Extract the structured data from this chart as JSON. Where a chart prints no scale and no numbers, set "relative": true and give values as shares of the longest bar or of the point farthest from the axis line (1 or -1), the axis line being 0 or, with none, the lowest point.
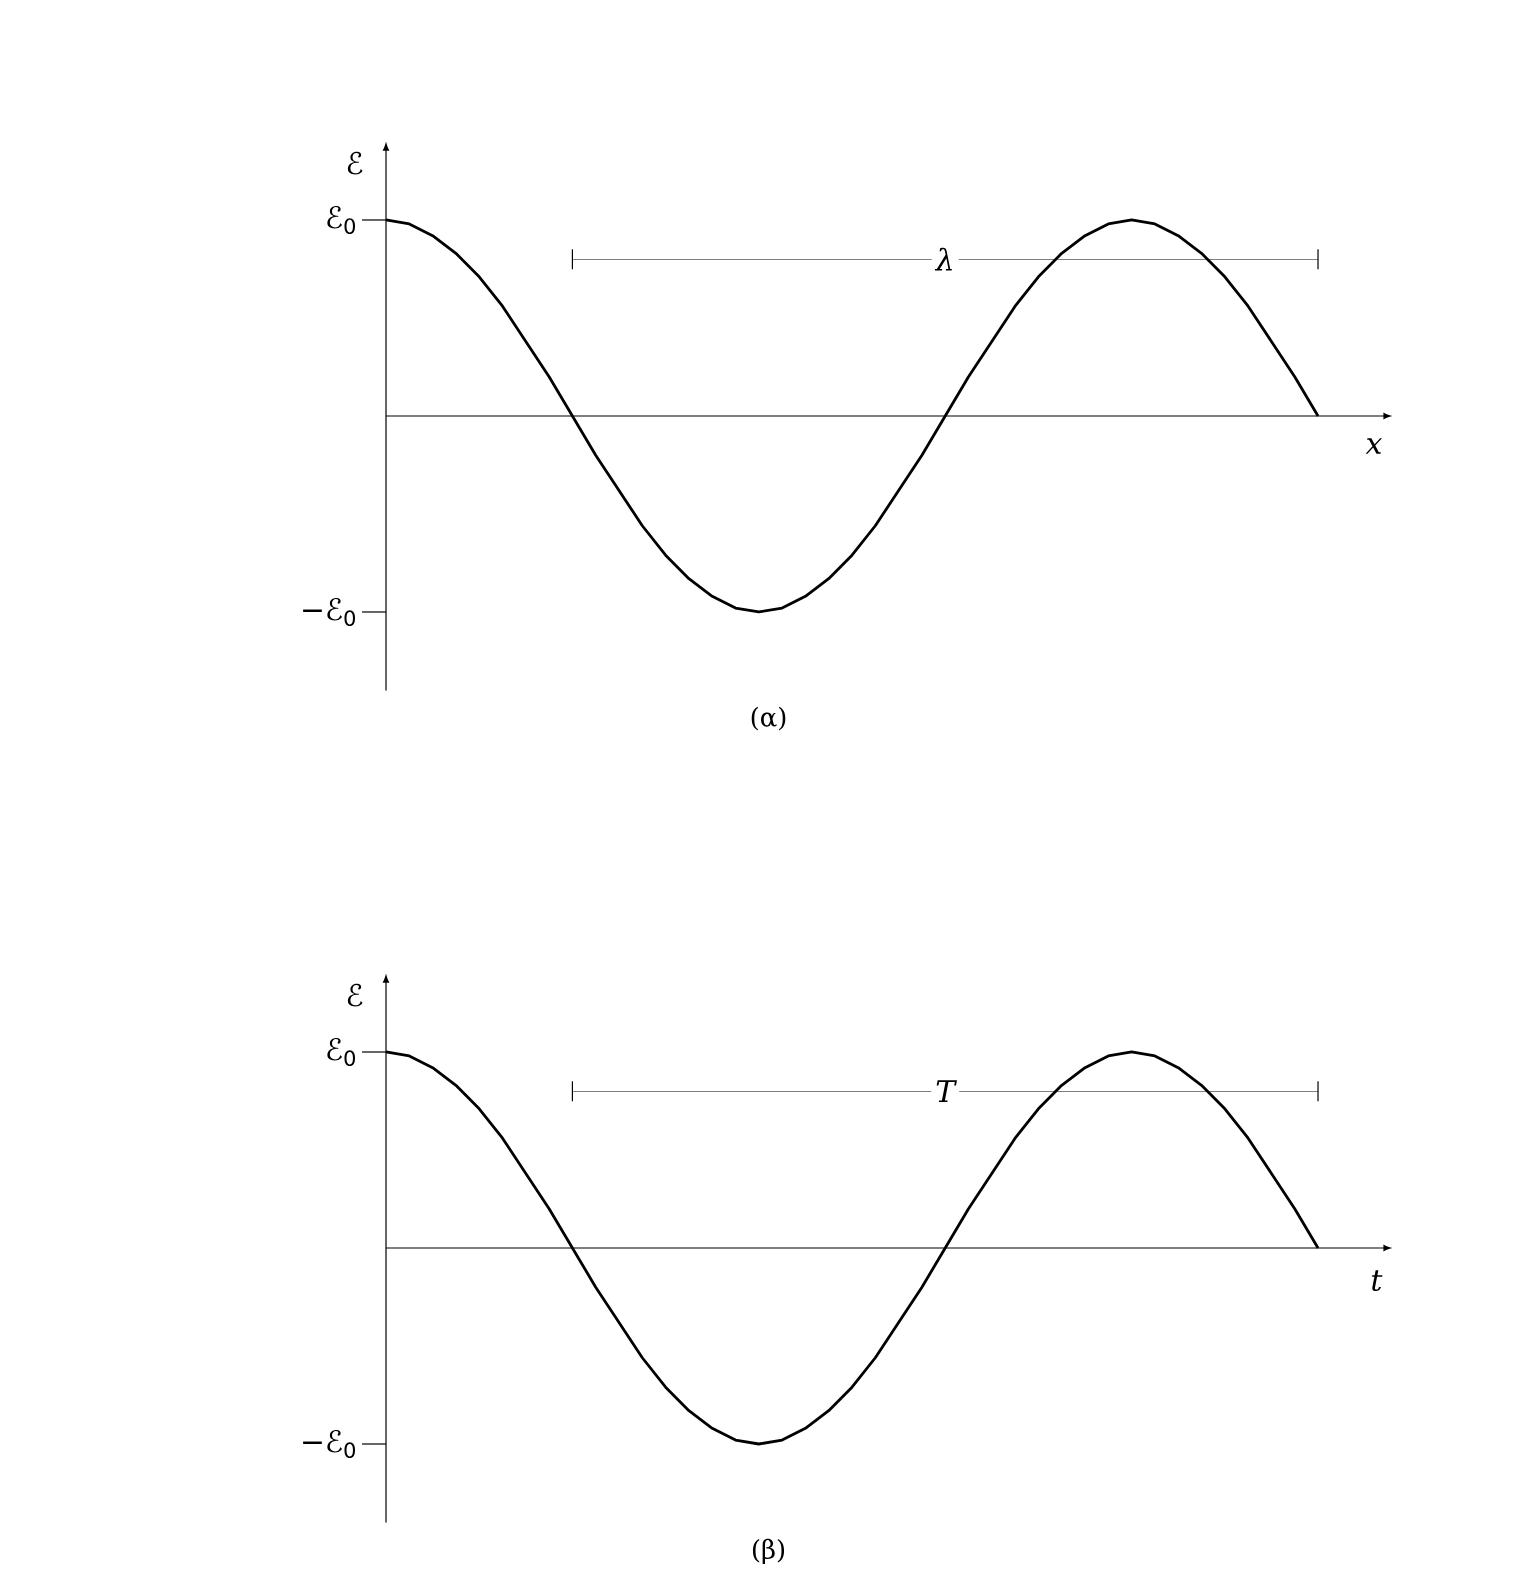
{
  "chart_data": [
    {
      "type": "line",
      "title": "(α)",
      "xlabel": "x",
      "ylabel": "ℰ",
      "relative": true,
      "categories": [
        null,
        null,
        null,
        null,
        null,
        null,
        null,
        null,
        null,
        null,
        null,
        null,
        null,
        null,
        null,
        null,
        null,
        null,
        null,
        null,
        null,
        null,
        null,
        null,
        null,
        null,
        null,
        null,
        null,
        null,
        null,
        null,
        null,
        null,
        null,
        null,
        null,
        null,
        null,
        null,
        null
      ],
      "series": [
        {
          "color": "#000000",
          "values": [
            1,
            0.98,
            0.92,
            0.83,
            0.71,
            0.56,
            0.38,
            0.2,
            0,
            -0.2,
            -0.38,
            -0.56,
            -0.71,
            -0.83,
            -0.92,
            -0.98,
            -1,
            -0.98,
            -0.92,
            -0.83,
            -0.71,
            -0.56,
            -0.38,
            -0.2,
            0,
            0.2,
            0.38,
            0.56,
            0.71,
            0.83,
            0.92,
            0.98,
            1,
            0.98,
            0.92,
            0.83,
            0.71,
            0.56,
            0.38,
            0.2,
            0
          ]
        }
      ],
      "annotations": [
        "ℰ$_{0}$",
        "−ℰ$_{0}$",
        "λ"
      ]
    },
    {
      "type": "line",
      "title": "(β)",
      "xlabel": "t",
      "ylabel": "ℰ",
      "relative": true,
      "categories": [
        null,
        null,
        null,
        null,
        null,
        null,
        null,
        null,
        null,
        null,
        null,
        null,
        null,
        null,
        null,
        null,
        null,
        null,
        null,
        null,
        null,
        null,
        null,
        null,
        null,
        null,
        null,
        null,
        null,
        null,
        null,
        null,
        null,
        null,
        null,
        null,
        null,
        null,
        null,
        null,
        null
      ],
      "series": [
        {
          "color": "#000000",
          "values": [
            1,
            0.98,
            0.92,
            0.83,
            0.71,
            0.56,
            0.38,
            0.2,
            0,
            -0.2,
            -0.38,
            -0.56,
            -0.71,
            -0.83,
            -0.92,
            -0.98,
            -1,
            -0.98,
            -0.92,
            -0.83,
            -0.71,
            -0.56,
            -0.38,
            -0.2,
            0,
            0.2,
            0.38,
            0.56,
            0.71,
            0.83,
            0.92,
            0.98,
            1,
            0.98,
            0.92,
            0.83,
            0.71,
            0.56,
            0.38,
            0.2,
            0
          ]
        }
      ],
      "annotations": [
        "ℰ$_{0}$",
        "−ℰ$_{0}$",
        "T"
      ]
    }
  ]
}
